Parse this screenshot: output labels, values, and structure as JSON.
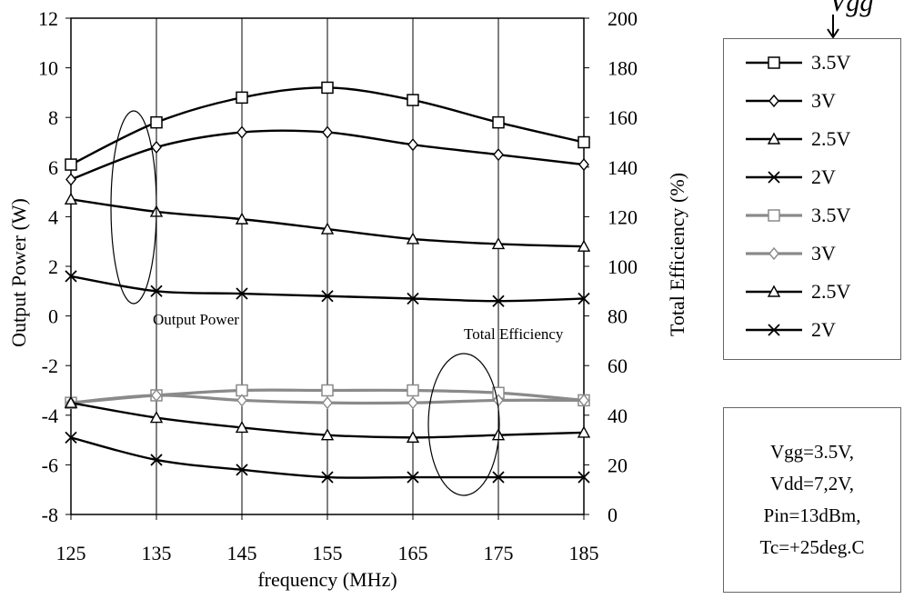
{
  "chart_data": {
    "type": "line",
    "xlabel": "frequency (MHz)",
    "ylabel_left": "Output Power (W)",
    "ylabel_right": "Total Efficiency (%)",
    "x": [
      125,
      135,
      145,
      155,
      165,
      175,
      185
    ],
    "x_ticks": [
      "125",
      "135",
      "145",
      "155",
      "165",
      "175",
      "185"
    ],
    "xlim": [
      125,
      185
    ],
    "ylim_left": [
      -8,
      12
    ],
    "ylim_right": [
      0,
      200
    ],
    "y_ticks_left": [
      "-8",
      "-6",
      "-4",
      "-2",
      "0",
      "2",
      "4",
      "6",
      "8",
      "10",
      "12"
    ],
    "y_ticks_right": [
      "0",
      "20",
      "40",
      "60",
      "80",
      "100",
      "120",
      "140",
      "160",
      "180",
      "200"
    ],
    "grid": "vertical",
    "series": [
      {
        "name": "3.5V",
        "group": "Output Power",
        "axis": "left",
        "marker": "square",
        "color": "#000000",
        "values": [
          6.1,
          7.8,
          8.8,
          9.2,
          8.7,
          7.8,
          7.0
        ]
      },
      {
        "name": "3V",
        "group": "Output Power",
        "axis": "left",
        "marker": "diamond",
        "color": "#000000",
        "values": [
          5.5,
          6.8,
          7.4,
          7.4,
          6.9,
          6.5,
          6.1
        ]
      },
      {
        "name": "2.5V",
        "group": "Output Power",
        "axis": "left",
        "marker": "triangle",
        "color": "#000000",
        "values": [
          4.7,
          4.2,
          3.9,
          3.5,
          3.1,
          2.9,
          2.8
        ]
      },
      {
        "name": "2V",
        "group": "Output Power",
        "axis": "left",
        "marker": "x",
        "color": "#000000",
        "values": [
          1.6,
          1.0,
          0.9,
          0.8,
          0.7,
          0.6,
          0.7
        ]
      },
      {
        "name": "3.5V",
        "group": "Total Efficiency",
        "axis": "right",
        "marker": "square",
        "color": "#8a8a8a",
        "values": [
          45,
          48,
          50,
          50,
          50,
          49,
          46
        ]
      },
      {
        "name": "3V",
        "group": "Total Efficiency",
        "axis": "right",
        "marker": "diamond",
        "color": "#8a8a8a",
        "values": [
          45,
          48,
          46,
          45,
          45,
          46,
          46
        ]
      },
      {
        "name": "2.5V",
        "group": "Total Efficiency",
        "axis": "right",
        "marker": "triangle",
        "color": "#000000",
        "values": [
          45,
          39,
          35,
          32,
          31,
          32,
          33
        ]
      },
      {
        "name": "2V",
        "group": "Total Efficiency",
        "axis": "right",
        "marker": "x",
        "color": "#000000",
        "values": [
          31,
          22,
          18,
          15,
          15,
          15,
          15
        ]
      }
    ],
    "annotations": [
      "Output Power",
      "Total Efficiency"
    ],
    "legend_header": "Vgg"
  },
  "conditions": [
    "Vgg=3.5V,",
    "Vdd=7,2V,",
    "Pin=13dBm,",
    "Tc=+25deg.C"
  ]
}
